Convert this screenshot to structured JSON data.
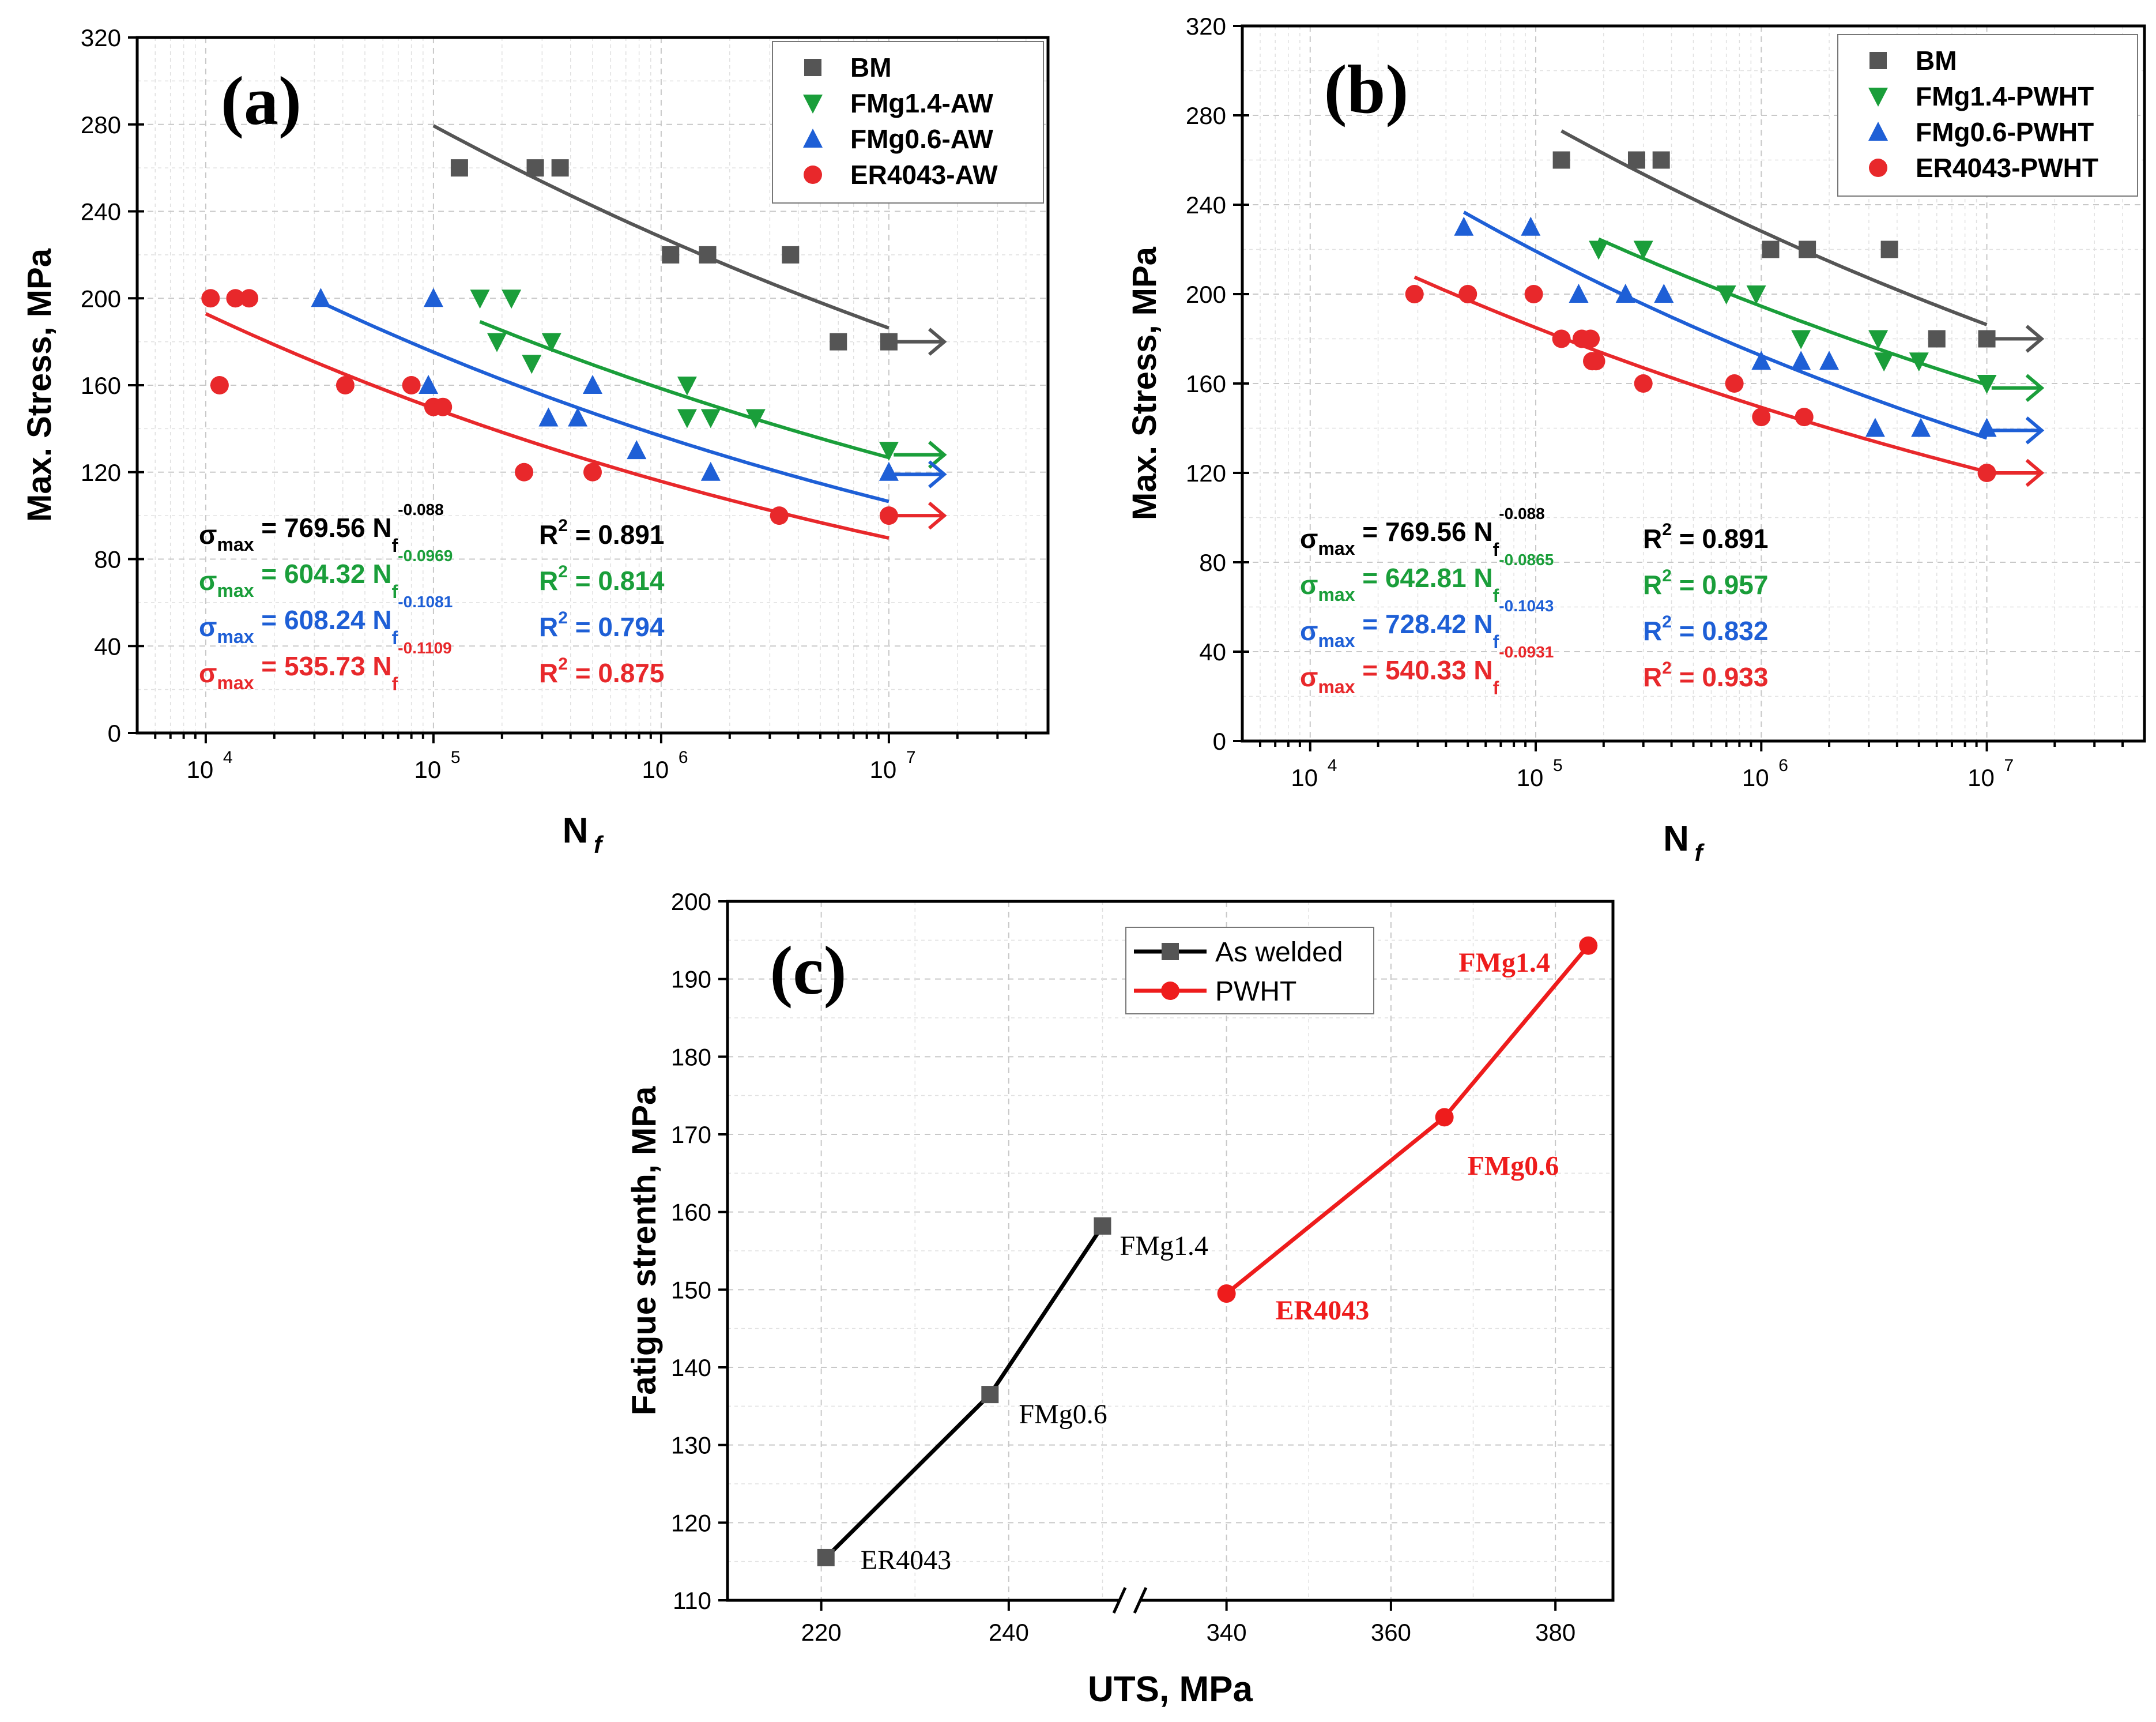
{
  "colors": {
    "BM": "#555555",
    "FMg14": "#1a9e3a",
    "FMg06": "#1e5fd6",
    "ER4043": "#e8282b",
    "aw_line": "#000000",
    "pwht_line": "#ee1c1c"
  },
  "chart_data": [
    {
      "type": "scatter",
      "panel_label": "(a)",
      "xlabel": "N",
      "xlabel_sub": "f",
      "ylabel": "Max. Stress, MPa",
      "xscale": "log",
      "xlim": [
        5000,
        50000000
      ],
      "ylim": [
        0,
        320
      ],
      "xtick_labels": [
        "10",
        "10",
        "10",
        "10"
      ],
      "xtick_exponents": [
        "4",
        "5",
        "6",
        "7"
      ],
      "yticks": [
        0,
        40,
        80,
        120,
        160,
        200,
        240,
        280,
        320
      ],
      "grid": true,
      "legend_position": "top-right",
      "series": [
        {
          "name": "BM",
          "color_key": "BM",
          "marker": "square",
          "points": [
            [
              130000,
              260
            ],
            [
              280000,
              260
            ],
            [
              360000,
              260
            ],
            [
              1100000,
              220
            ],
            [
              1600000,
              220
            ],
            [
              3700000,
              220
            ],
            [
              6000000,
              180
            ],
            [
              10000000,
              180
            ]
          ],
          "fit": {
            "a": 769.56,
            "b": -0.088,
            "from": 100000,
            "to": 10000000
          }
        },
        {
          "name": "FMg1.4-AW",
          "color_key": "FMg14",
          "marker": "triangle-down",
          "points": [
            [
              160000,
              200
            ],
            [
              220000,
              200
            ],
            [
              190000,
              180
            ],
            [
              330000,
              180
            ],
            [
              270000,
              170
            ],
            [
              1300000,
              160
            ],
            [
              1300000,
              145
            ],
            [
              1650000,
              145
            ],
            [
              2600000,
              145
            ],
            [
              10000000,
              130
            ]
          ],
          "fit": {
            "a": 604.32,
            "b": -0.0969,
            "from": 160000,
            "to": 10000000
          }
        },
        {
          "name": "FMg0.6-AW",
          "color_key": "FMg06",
          "marker": "triangle-up",
          "points": [
            [
              32000,
              200
            ],
            [
              100000,
              200
            ],
            [
              95000,
              160
            ],
            [
              320000,
              145
            ],
            [
              430000,
              145
            ],
            [
              500000,
              160
            ],
            [
              780000,
              130
            ],
            [
              1650000,
              120
            ],
            [
              10000000,
              120
            ]
          ],
          "fit": {
            "a": 608.24,
            "b": -0.1081,
            "from": 32000,
            "to": 10000000
          }
        },
        {
          "name": "ER4043-AW",
          "color_key": "ER4043",
          "marker": "circle",
          "points": [
            [
              10500,
              200
            ],
            [
              13500,
              200
            ],
            [
              15500,
              200
            ],
            [
              11500,
              160
            ],
            [
              41000,
              160
            ],
            [
              80000,
              160
            ],
            [
              100000,
              150
            ],
            [
              110000,
              150
            ],
            [
              250000,
              120
            ],
            [
              500000,
              120
            ],
            [
              3300000,
              100
            ],
            [
              10000000,
              100
            ]
          ],
          "fit": {
            "a": 535.73,
            "b": -0.1109,
            "from": 10000,
            "to": 10000000
          }
        }
      ],
      "runouts": [
        {
          "color_key": "BM",
          "y": 180
        },
        {
          "color_key": "FMg14",
          "y": 128
        },
        {
          "color_key": "FMg06",
          "y": 119
        },
        {
          "color_key": "ER4043",
          "y": 100
        }
      ],
      "equations": [
        {
          "color_key": "aw_line",
          "main": "σ",
          "sub": "max",
          "mid": " = 769.56 N",
          "sub2": "f",
          "sup": "-0.088",
          "r2_prefix": "R",
          "r2_sup": "2",
          "r2_value": " = 0.891"
        },
        {
          "color_key": "FMg14",
          "main": "σ",
          "sub": "max",
          "mid": " = 604.32 N",
          "sub2": "f",
          "sup": "-0.0969",
          "r2_prefix": "R",
          "r2_sup": "2",
          "r2_value": " = 0.814"
        },
        {
          "color_key": "FMg06",
          "main": "σ",
          "sub": "max",
          "mid": " = 608.24 N",
          "sub2": "f",
          "sup": "-0.1081",
          "r2_prefix": "R",
          "r2_sup": "2",
          "r2_value": " = 0.794"
        },
        {
          "color_key": "ER4043",
          "main": "σ",
          "sub": "max",
          "mid": " = 535.73 N",
          "sub2": "f",
          "sup": "-0.1109",
          "r2_prefix": "R",
          "r2_sup": "2",
          "r2_value": " = 0.875"
        }
      ]
    },
    {
      "type": "scatter",
      "panel_label": "(b)",
      "xlabel": "N",
      "xlabel_sub": "f",
      "ylabel": "Max. Stress, MPa",
      "xscale": "log",
      "xlim": [
        5000,
        50000000
      ],
      "ylim": [
        0,
        320
      ],
      "xtick_labels": [
        "10",
        "10",
        "10",
        "10"
      ],
      "xtick_exponents": [
        "4",
        "5",
        "6",
        "7"
      ],
      "yticks": [
        0,
        40,
        80,
        120,
        160,
        200,
        240,
        280,
        320
      ],
      "grid": true,
      "legend_position": "top-right",
      "series": [
        {
          "name": "BM",
          "color_key": "BM",
          "marker": "square",
          "points": [
            [
              130000,
              260
            ],
            [
              280000,
              260
            ],
            [
              360000,
              260
            ],
            [
              1100000,
              220
            ],
            [
              1600000,
              220
            ],
            [
              3700000,
              220
            ],
            [
              6000000,
              180
            ],
            [
              10000000,
              180
            ]
          ],
          "fit": {
            "a": 769.56,
            "b": -0.088,
            "from": 130000,
            "to": 10000000
          }
        },
        {
          "name": "FMg1.4-PWHT",
          "color_key": "FMg14",
          "marker": "triangle-down",
          "points": [
            [
              190000,
              220
            ],
            [
              300000,
              220
            ],
            [
              700000,
              200
            ],
            [
              950000,
              200
            ],
            [
              1500000,
              180
            ],
            [
              3300000,
              180
            ],
            [
              3500000,
              170
            ],
            [
              5000000,
              170
            ],
            [
              10000000,
              160
            ]
          ],
          "fit": {
            "a": 642.81,
            "b": -0.0865,
            "from": 190000,
            "to": 10000000
          }
        },
        {
          "name": "FMg0.6-PWHT",
          "color_key": "FMg06",
          "marker": "triangle-up",
          "points": [
            [
              48000,
              230
            ],
            [
              95000,
              230
            ],
            [
              155000,
              200
            ],
            [
              250000,
              200
            ],
            [
              370000,
              200
            ],
            [
              1000000,
              170
            ],
            [
              1500000,
              170
            ],
            [
              2000000,
              170
            ],
            [
              3200000,
              140
            ],
            [
              5100000,
              140
            ],
            [
              10000000,
              140
            ]
          ],
          "fit": {
            "a": 728.42,
            "b": -0.1043,
            "from": 48000,
            "to": 10000000
          }
        },
        {
          "name": "ER4043-PWHT",
          "color_key": "ER4043",
          "marker": "circle",
          "points": [
            [
              29000,
              200
            ],
            [
              50000,
              200
            ],
            [
              98000,
              200
            ],
            [
              130000,
              180
            ],
            [
              160000,
              180
            ],
            [
              175000,
              180
            ],
            [
              178000,
              170
            ],
            [
              185000,
              170
            ],
            [
              300000,
              160
            ],
            [
              760000,
              160
            ],
            [
              1000000,
              145
            ],
            [
              1550000,
              145
            ],
            [
              10000000,
              120
            ]
          ],
          "fit": {
            "a": 540.33,
            "b": -0.0931,
            "from": 29000,
            "to": 10000000
          }
        }
      ],
      "runouts": [
        {
          "color_key": "BM",
          "y": 180
        },
        {
          "color_key": "FMg14",
          "y": 158
        },
        {
          "color_key": "FMg06",
          "y": 139
        },
        {
          "color_key": "ER4043",
          "y": 120
        }
      ],
      "equations": [
        {
          "color_key": "aw_line",
          "main": "σ",
          "sub": "max",
          "mid": " = 769.56 N",
          "sub2": "f",
          "sup": "-0.088",
          "r2_prefix": "R",
          "r2_sup": "2",
          "r2_value": " = 0.891"
        },
        {
          "color_key": "FMg14",
          "main": "σ",
          "sub": "max",
          "mid": " = 642.81 N",
          "sub2": "f",
          "sup": "-0.0865",
          "r2_prefix": "R",
          "r2_sup": "2",
          "r2_value": " = 0.957"
        },
        {
          "color_key": "FMg06",
          "main": "σ",
          "sub": "max",
          "mid": " = 728.42 N",
          "sub2": "f",
          "sup": "-0.1043",
          "r2_prefix": "R",
          "r2_sup": "2",
          "r2_value": " = 0.832"
        },
        {
          "color_key": "ER4043",
          "main": "σ",
          "sub": "max",
          "mid": " = 540.33 N",
          "sub2": "f",
          "sup": "-0.0931",
          "r2_prefix": "R",
          "r2_sup": "2",
          "r2_value": " = 0.933"
        }
      ]
    },
    {
      "type": "line",
      "panel_label": "(c)",
      "xlabel": "UTS, MPa",
      "ylabel": "Fatigue strenth, MPa",
      "x_axis_break": true,
      "xlim_left": [
        210,
        252
      ],
      "xlim_right": [
        330,
        387
      ],
      "xticks_left": [
        220,
        240
      ],
      "xticks_right": [
        340,
        360,
        380
      ],
      "ylim": [
        110,
        200
      ],
      "yticks": [
        110,
        120,
        130,
        140,
        150,
        160,
        170,
        180,
        190,
        200
      ],
      "grid": true,
      "legend_position": "top-right",
      "series": [
        {
          "name": "As welded",
          "color_key": "aw_line",
          "marker": "square",
          "segment": "left",
          "points": [
            [
              220.5,
              115.5
            ],
            [
              238,
              136.5
            ],
            [
              250,
              158.2
            ]
          ],
          "labels": [
            "ER4043",
            "FMg0.6",
            "FMg1.4"
          ]
        },
        {
          "name": "PWHT",
          "color_key": "pwht_line",
          "marker": "circle",
          "segment": "right",
          "points": [
            [
              340,
              149.5
            ],
            [
              366.5,
              172.2
            ],
            [
              384,
              194.3
            ]
          ],
          "labels": [
            "ER4043",
            "FMg0.6",
            "FMg1.4"
          ]
        }
      ]
    }
  ]
}
